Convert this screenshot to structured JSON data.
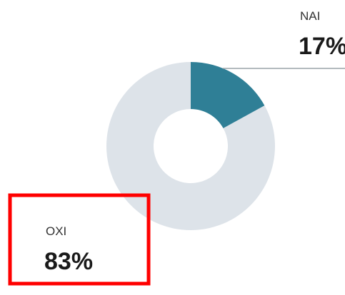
{
  "chart_data": {
    "type": "pie",
    "donut": true,
    "categories": [
      "NAI",
      "OXI"
    ],
    "values": [
      17,
      83
    ],
    "value_labels": [
      "17%",
      "83%"
    ],
    "colors": [
      "#2f7f96",
      "#dde3e9"
    ]
  }
}
